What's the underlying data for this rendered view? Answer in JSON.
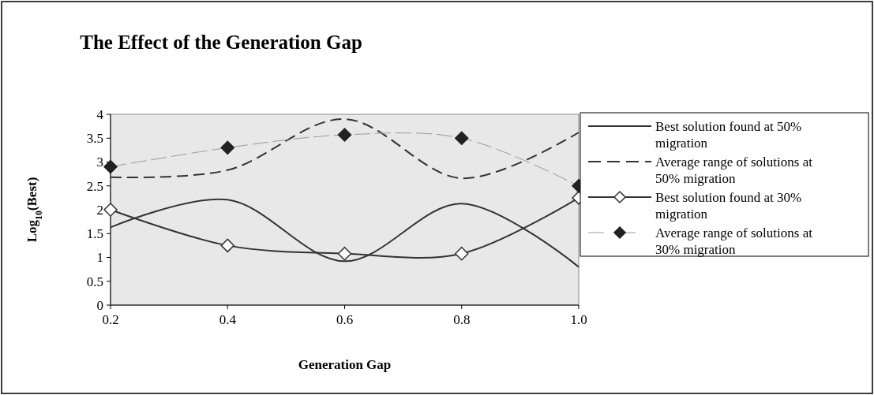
{
  "chart_data": {
    "type": "line",
    "title": "The Effect of the Generation Gap",
    "xlabel": "Generation Gap",
    "ylabel": "Log$_{10}$(Best)",
    "x": [
      0.2,
      0.4,
      0.6,
      0.8,
      1.0
    ],
    "xlim": [
      0.2,
      1.0
    ],
    "xticks": [
      0.2,
      0.4,
      0.6,
      0.8,
      {
        "value": 1.0,
        "label": "1.0"
      }
    ],
    "ylim": [
      0,
      4
    ],
    "yticks": [
      0,
      0.5,
      1,
      1.5,
      2,
      2.5,
      3,
      3.5,
      4
    ],
    "grid": false,
    "legend": "top right",
    "series": [
      {
        "name": "Best solution found at 50% migration",
        "color": "#333333",
        "line_style": "solid",
        "marker": "none",
        "values": [
          1.63,
          2.21,
          0.92,
          2.13,
          0.8
        ]
      },
      {
        "name": "Average range of solutions at 50% migration",
        "color": "#333333",
        "line_style": "dashed",
        "marker": "none",
        "values": [
          2.68,
          2.83,
          3.9,
          2.66,
          3.62
        ]
      },
      {
        "name": "Best solution found at 30% migration",
        "color": "#333333",
        "line_style": "solid",
        "marker": "diamond",
        "values": [
          2.0,
          1.25,
          1.08,
          1.08,
          2.25
        ]
      },
      {
        "name": "Average range of solutions at 30% migration",
        "color": "#222222",
        "line_style": "dashed",
        "marker": "diamond",
        "values": [
          2.9,
          3.3,
          3.57,
          3.5,
          2.5
        ]
      }
    ]
  }
}
